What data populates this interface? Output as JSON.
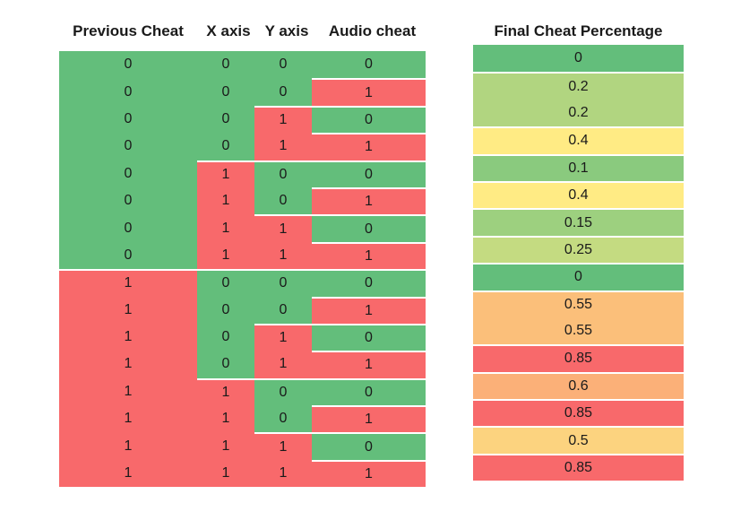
{
  "headers": {
    "previous_cheat": "Previous Cheat",
    "x_axis": "X axis",
    "y_axis": "Y axis",
    "audio_cheat": "Audio cheat",
    "final_cheat_percentage": "Final Cheat Percentage"
  },
  "colors": {
    "zero": "#63be7b",
    "one": "#f8696b"
  },
  "rows": [
    [
      "0",
      "0",
      "0",
      "0"
    ],
    [
      "0",
      "0",
      "0",
      "1"
    ],
    [
      "0",
      "0",
      "1",
      "0"
    ],
    [
      "0",
      "0",
      "1",
      "1"
    ],
    [
      "0",
      "1",
      "0",
      "0"
    ],
    [
      "0",
      "1",
      "0",
      "1"
    ],
    [
      "0",
      "1",
      "1",
      "0"
    ],
    [
      "0",
      "1",
      "1",
      "1"
    ],
    [
      "1",
      "0",
      "0",
      "0"
    ],
    [
      "1",
      "0",
      "0",
      "1"
    ],
    [
      "1",
      "0",
      "1",
      "0"
    ],
    [
      "1",
      "0",
      "1",
      "1"
    ],
    [
      "1",
      "1",
      "0",
      "0"
    ],
    [
      "1",
      "1",
      "0",
      "1"
    ],
    [
      "1",
      "1",
      "1",
      "0"
    ],
    [
      "1",
      "1",
      "1",
      "1"
    ]
  ],
  "final_values": [
    {
      "text": "0",
      "color": "#63be7b"
    },
    {
      "text": "0.2",
      "color": "#b1d580"
    },
    {
      "text": "0.2",
      "color": "#b1d580"
    },
    {
      "text": "0.4",
      "color": "#ffeb84"
    },
    {
      "text": "0.1",
      "color": "#8aca7e"
    },
    {
      "text": "0.4",
      "color": "#ffeb84"
    },
    {
      "text": "0.15",
      "color": "#9dd07f"
    },
    {
      "text": "0.25",
      "color": "#c4db81"
    },
    {
      "text": "0",
      "color": "#63be7b"
    },
    {
      "text": "0.55",
      "color": "#fbbf7a"
    },
    {
      "text": "0.55",
      "color": "#fbbf7a"
    },
    {
      "text": "0.85",
      "color": "#f8696b"
    },
    {
      "text": "0.6",
      "color": "#fbb078"
    },
    {
      "text": "0.85",
      "color": "#f8696b"
    },
    {
      "text": "0.5",
      "color": "#fcd37f"
    },
    {
      "text": "0.85",
      "color": "#f8696b"
    }
  ]
}
